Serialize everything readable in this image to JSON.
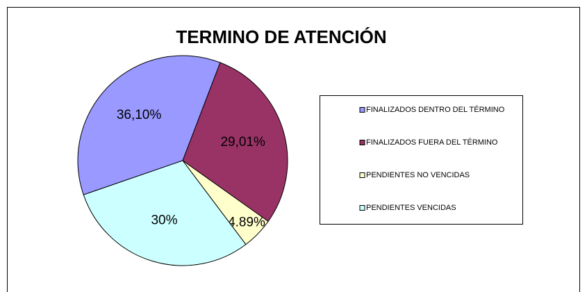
{
  "chart_data": {
    "type": "pie",
    "title": "TERMINO DE ATENCIÓN",
    "categories": [
      "FINALIZADOS DENTRO DEL TÉRMINO",
      "FINALIZADOS FUERA DEL TÉRMINO",
      "PENDIENTES NO VENCIDAS",
      "PENDIENTES VENCIDAS"
    ],
    "values": [
      36.1,
      29.01,
      4.89,
      30
    ],
    "value_labels": [
      "36,10%",
      "29,01%",
      "4.89%",
      "30%"
    ],
    "colors": [
      "#9999ff",
      "#993366",
      "#ffffcc",
      "#ccffff"
    ],
    "legend": "right"
  }
}
